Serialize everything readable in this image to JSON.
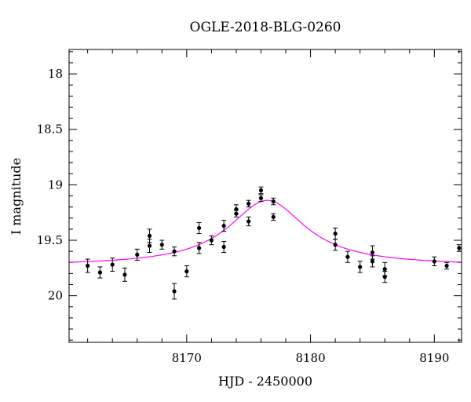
{
  "chart_data": {
    "type": "scatter",
    "title": "OGLE-2018-BLG-0260",
    "xlabel": "HJD - 2450000",
    "ylabel": "I magnitude",
    "xlim": [
      8160.5,
      8192.2
    ],
    "ylim": [
      20.42,
      17.78
    ],
    "y_inverted": true,
    "grid": false,
    "x_ticks": [
      8170,
      8180,
      8190
    ],
    "y_ticks": [
      18,
      18.5,
      19,
      19.5,
      20
    ],
    "x_tick_labels": [
      "8170",
      "8180",
      "8190"
    ],
    "y_tick_labels": [
      "18",
      "18.5",
      "19",
      "19.5",
      "20"
    ],
    "point_color": "#000000",
    "model_color": "#ff00ff",
    "points": [
      {
        "x": 8162.0,
        "y": 19.73,
        "err": 0.06
      },
      {
        "x": 8163.0,
        "y": 19.79,
        "err": 0.05
      },
      {
        "x": 8164.0,
        "y": 19.72,
        "err": 0.06
      },
      {
        "x": 8165.0,
        "y": 19.81,
        "err": 0.06
      },
      {
        "x": 8166.0,
        "y": 19.63,
        "err": 0.05
      },
      {
        "x": 8167.0,
        "y": 19.55,
        "err": 0.06
      },
      {
        "x": 8167.0,
        "y": 19.46,
        "err": 0.06
      },
      {
        "x": 8168.0,
        "y": 19.54,
        "err": 0.04
      },
      {
        "x": 8169.0,
        "y": 19.6,
        "err": 0.04
      },
      {
        "x": 8169.0,
        "y": 19.96,
        "err": 0.07
      },
      {
        "x": 8170.0,
        "y": 19.78,
        "err": 0.05
      },
      {
        "x": 8171.0,
        "y": 19.57,
        "err": 0.05
      },
      {
        "x": 8171.0,
        "y": 19.39,
        "err": 0.05
      },
      {
        "x": 8172.0,
        "y": 19.5,
        "err": 0.04
      },
      {
        "x": 8173.0,
        "y": 19.56,
        "err": 0.05
      },
      {
        "x": 8173.0,
        "y": 19.37,
        "err": 0.05
      },
      {
        "x": 8174.0,
        "y": 19.26,
        "err": 0.03
      },
      {
        "x": 8174.0,
        "y": 19.22,
        "err": 0.04
      },
      {
        "x": 8175.0,
        "y": 19.33,
        "err": 0.04
      },
      {
        "x": 8175.0,
        "y": 19.17,
        "err": 0.03
      },
      {
        "x": 8176.0,
        "y": 19.12,
        "err": 0.03
      },
      {
        "x": 8176.0,
        "y": 19.05,
        "err": 0.03
      },
      {
        "x": 8177.0,
        "y": 19.29,
        "err": 0.03
      },
      {
        "x": 8177.0,
        "y": 19.15,
        "err": 0.03
      },
      {
        "x": 8182.0,
        "y": 19.44,
        "err": 0.05
      },
      {
        "x": 8182.0,
        "y": 19.54,
        "err": 0.05
      },
      {
        "x": 8183.0,
        "y": 19.65,
        "err": 0.05
      },
      {
        "x": 8184.0,
        "y": 19.74,
        "err": 0.05
      },
      {
        "x": 8185.0,
        "y": 19.61,
        "err": 0.06
      },
      {
        "x": 8185.0,
        "y": 19.69,
        "err": 0.05
      },
      {
        "x": 8186.0,
        "y": 19.83,
        "err": 0.05
      },
      {
        "x": 8186.0,
        "y": 19.76,
        "err": 0.06
      },
      {
        "x": 8190.0,
        "y": 19.69,
        "err": 0.04
      },
      {
        "x": 8191.0,
        "y": 19.73,
        "err": 0.03
      },
      {
        "x": 8192.0,
        "y": 19.57,
        "err": 0.03
      }
    ],
    "model": {
      "baseline": 19.73,
      "peak": 19.14,
      "t0": 8176.5,
      "width": 3.8
    }
  }
}
